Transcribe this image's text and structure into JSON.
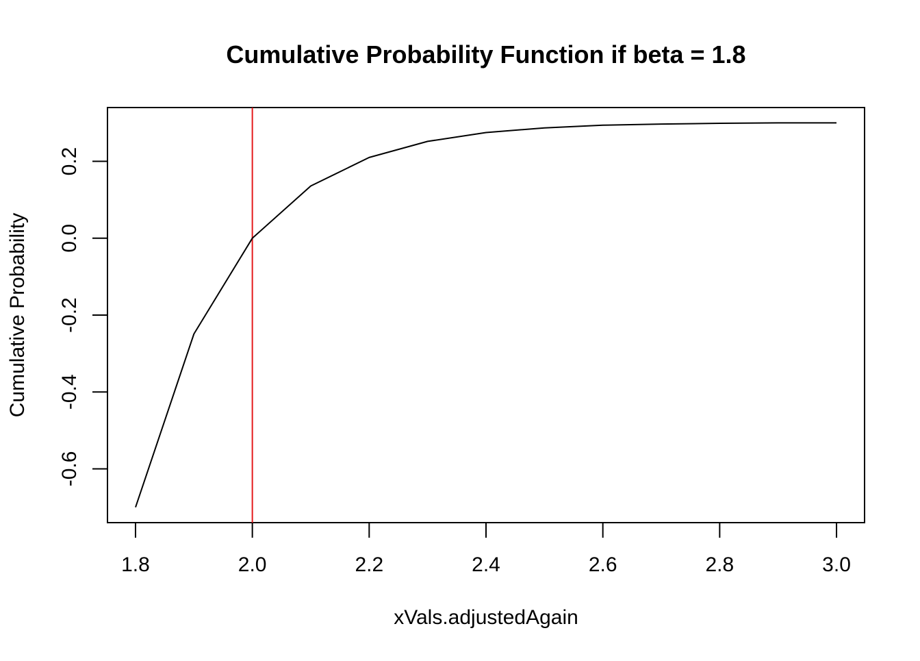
{
  "chart_data": {
    "type": "line",
    "title": "Cumulative Probability Function if beta = 1.8",
    "xlabel": "xVals.adjustedAgain",
    "ylabel": "Cumulative Probability",
    "xlim": [
      1.8,
      3.0
    ],
    "ylim": [
      -0.7,
      0.3
    ],
    "x_ticks": [
      1.8,
      2.0,
      2.2,
      2.4,
      2.6,
      2.8,
      3.0
    ],
    "x_tick_labels": [
      "1.8",
      "2.0",
      "2.2",
      "2.4",
      "2.6",
      "2.8",
      "3.0"
    ],
    "y_ticks": [
      -0.6,
      -0.4,
      -0.2,
      0.0,
      0.2
    ],
    "y_tick_labels": [
      "-0.6",
      "-0.4",
      "-0.2",
      "0.0",
      "0.2"
    ],
    "grid": false,
    "series": [
      {
        "color": "#000000",
        "x": [
          1.8,
          1.9,
          2.0,
          2.1,
          2.2,
          2.3,
          2.4,
          2.5,
          2.6,
          2.7,
          2.8,
          2.9,
          3.0
        ],
        "y": [
          -0.7,
          -0.249,
          0.0,
          0.136,
          0.21,
          0.252,
          0.275,
          0.287,
          0.294,
          0.297,
          0.299,
          0.3,
          0.3
        ]
      }
    ],
    "vlines": [
      {
        "x": 2.0,
        "color": "#e41a1c"
      }
    ]
  }
}
